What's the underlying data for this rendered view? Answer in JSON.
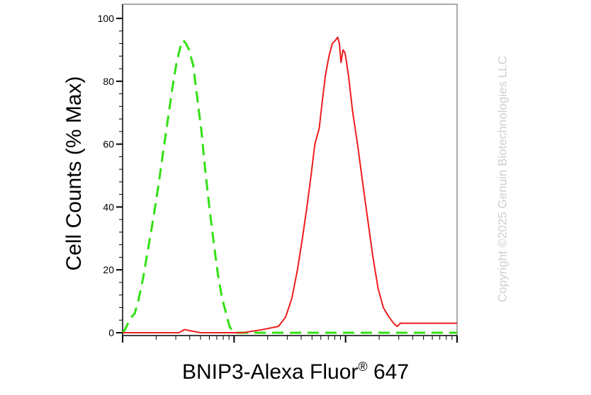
{
  "chart_data": {
    "type": "line",
    "title": "",
    "xlabel_main": "BNIP3-Alexa Fluor",
    "xlabel_reg": "®",
    "xlabel_tail": " 647",
    "ylabel": "Cell Counts (% Max)",
    "x_scale": "log",
    "xlim": [
      1,
      1000
    ],
    "ylim": [
      0,
      100
    ],
    "yticks": [
      0,
      20,
      40,
      60,
      80,
      100
    ],
    "grid": false,
    "series": [
      {
        "color": "#33e014",
        "dash": "dashed",
        "points": [
          [
            1.0,
            0
          ],
          [
            1.05,
            1
          ],
          [
            1.12,
            3
          ],
          [
            1.2,
            5
          ],
          [
            1.28,
            6
          ],
          [
            1.38,
            10
          ],
          [
            1.52,
            17
          ],
          [
            1.7,
            27
          ],
          [
            1.9,
            37
          ],
          [
            2.1,
            47
          ],
          [
            2.3,
            57
          ],
          [
            2.55,
            68
          ],
          [
            2.8,
            78
          ],
          [
            3.05,
            86
          ],
          [
            3.3,
            91
          ],
          [
            3.5,
            93
          ],
          [
            3.7,
            92
          ],
          [
            3.95,
            90
          ],
          [
            4.3,
            85
          ],
          [
            4.7,
            74
          ],
          [
            5.1,
            64
          ],
          [
            5.5,
            52
          ],
          [
            6.0,
            40
          ],
          [
            6.6,
            28
          ],
          [
            7.2,
            18
          ],
          [
            7.8,
            11
          ],
          [
            8.5,
            6
          ],
          [
            9.1,
            2
          ],
          [
            9.7,
            0.5
          ],
          [
            10.5,
            0
          ],
          [
            1000,
            0
          ]
        ]
      },
      {
        "color": "#ee1c1c",
        "dash": "solid",
        "points": [
          [
            1.0,
            0
          ],
          [
            3.2,
            0
          ],
          [
            3.6,
            1
          ],
          [
            4.2,
            0.5
          ],
          [
            5.0,
            0
          ],
          [
            12,
            0
          ],
          [
            18,
            1
          ],
          [
            25,
            2
          ],
          [
            29,
            5
          ],
          [
            33,
            11
          ],
          [
            37,
            20
          ],
          [
            41,
            30
          ],
          [
            45,
            40
          ],
          [
            49,
            50
          ],
          [
            53,
            60
          ],
          [
            58,
            65
          ],
          [
            62,
            74
          ],
          [
            66,
            82
          ],
          [
            71,
            88
          ],
          [
            76,
            92
          ],
          [
            81,
            93
          ],
          [
            85,
            94
          ],
          [
            88,
            92
          ],
          [
            91,
            86
          ],
          [
            95,
            90
          ],
          [
            99,
            89
          ],
          [
            106,
            82
          ],
          [
            116,
            70
          ],
          [
            128,
            60
          ],
          [
            142,
            48
          ],
          [
            158,
            36
          ],
          [
            176,
            24
          ],
          [
            196,
            14
          ],
          [
            218,
            8
          ],
          [
            245,
            5
          ],
          [
            270,
            3
          ],
          [
            290,
            2
          ],
          [
            310,
            3
          ],
          [
            1000,
            3
          ]
        ]
      }
    ]
  },
  "copyright": "Copyright ©2025 Genuin Biotechnologies LLC"
}
